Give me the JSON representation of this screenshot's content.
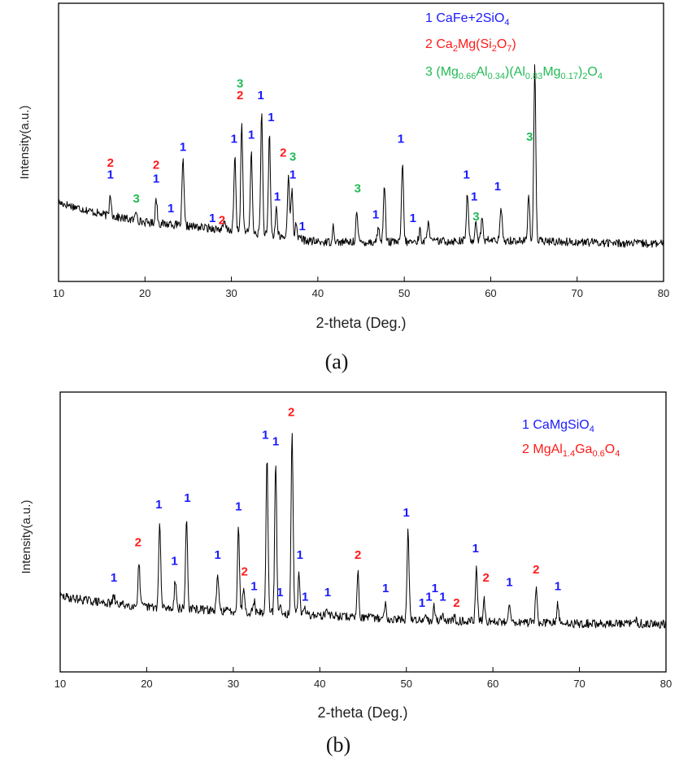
{
  "chart_data": [
    {
      "id": "a",
      "type": "line",
      "panel_label": "(a)",
      "xlabel": "2-theta (Deg.)",
      "ylabel": "Intensity(a.u.)",
      "xlim": [
        10,
        80
      ],
      "xticks": [
        10,
        20,
        30,
        40,
        50,
        60,
        70,
        80
      ],
      "y_units": "relative intensity (0 baseline to 100 max)",
      "legend": [
        {
          "num": "1",
          "name": "CaFe+2SiO",
          "sub": "4",
          "color": "#1a1aff"
        },
        {
          "num": "2",
          "name": "Ca",
          "sub": "2",
          "rest": "Mg(Si",
          "sub2": "2",
          "rest2": "O",
          "sub3": "7",
          "tail": ")",
          "color": "#ff1a1a"
        },
        {
          "num": "3",
          "name": "(Mg",
          "sub": "0.66",
          "rest": "Al",
          "sub2": "0.34",
          "rest2": ")(Al",
          "sub3": "0.83",
          "rest3": "Mg",
          "sub4": "0.17",
          "tail": ")",
          "sub5": "2",
          "tail2": "O",
          "sub6": "4",
          "color": "#22bb55"
        }
      ],
      "background": [
        [
          10,
          30
        ],
        [
          15,
          24
        ],
        [
          20,
          20
        ],
        [
          25,
          18
        ],
        [
          30,
          16
        ],
        [
          35,
          13
        ],
        [
          40,
          10
        ],
        [
          50,
          10
        ],
        [
          60,
          11
        ],
        [
          70,
          10
        ],
        [
          80,
          9
        ]
      ],
      "peaks": [
        {
          "x": 16.0,
          "y": 34
        },
        {
          "x": 19.0,
          "y": 26
        },
        {
          "x": 21.3,
          "y": 32
        },
        {
          "x": 23.0,
          "y": 20
        },
        {
          "x": 24.4,
          "y": 51
        },
        {
          "x": 27.9,
          "y": 17
        },
        {
          "x": 29.2,
          "y": 20
        },
        {
          "x": 30.4,
          "y": 53
        },
        {
          "x": 31.2,
          "y": 70
        },
        {
          "x": 32.3,
          "y": 55
        },
        {
          "x": 33.5,
          "y": 75
        },
        {
          "x": 34.4,
          "y": 64
        },
        {
          "x": 35.2,
          "y": 27
        },
        {
          "x": 36.6,
          "y": 45
        },
        {
          "x": 37.0,
          "y": 36
        },
        {
          "x": 37.5,
          "y": 20
        },
        {
          "x": 38.1,
          "y": 12
        },
        {
          "x": 41.8,
          "y": 18
        },
        {
          "x": 44.5,
          "y": 25
        },
        {
          "x": 47.0,
          "y": 18
        },
        {
          "x": 47.7,
          "y": 40
        },
        {
          "x": 49.8,
          "y": 50
        },
        {
          "x": 51.8,
          "y": 16
        },
        {
          "x": 52.8,
          "y": 22
        },
        {
          "x": 57.3,
          "y": 35
        },
        {
          "x": 58.3,
          "y": 21
        },
        {
          "x": 59.0,
          "y": 22
        },
        {
          "x": 61.2,
          "y": 27
        },
        {
          "x": 64.4,
          "y": 33
        },
        {
          "x": 65.1,
          "y": 100
        }
      ],
      "peak_labels": [
        {
          "x": 16.0,
          "y": 42,
          "text": "1",
          "phase": 1
        },
        {
          "x": 16.0,
          "y": 48,
          "text": "2",
          "phase": 2
        },
        {
          "x": 19.0,
          "y": 30,
          "text": "3",
          "phase": 3
        },
        {
          "x": 21.3,
          "y": 40,
          "text": "1",
          "phase": 1
        },
        {
          "x": 21.3,
          "y": 47,
          "text": "2",
          "phase": 2
        },
        {
          "x": 23.0,
          "y": 25,
          "text": "1",
          "phase": 1
        },
        {
          "x": 24.4,
          "y": 56,
          "text": "1",
          "phase": 1
        },
        {
          "x": 27.8,
          "y": 20,
          "text": "1",
          "phase": 1
        },
        {
          "x": 28.9,
          "y": 19,
          "text": "2",
          "phase": 2
        },
        {
          "x": 30.3,
          "y": 60,
          "text": "1",
          "phase": 1
        },
        {
          "x": 31.0,
          "y": 82,
          "text": "2",
          "phase": 2
        },
        {
          "x": 31.0,
          "y": 88,
          "text": "3",
          "phase": 3
        },
        {
          "x": 32.3,
          "y": 62,
          "text": "1",
          "phase": 1
        },
        {
          "x": 33.4,
          "y": 82,
          "text": "1",
          "phase": 1
        },
        {
          "x": 34.6,
          "y": 71,
          "text": "1",
          "phase": 1
        },
        {
          "x": 36.0,
          "y": 53,
          "text": "2",
          "phase": 2
        },
        {
          "x": 37.1,
          "y": 51,
          "text": "3",
          "phase": 3
        },
        {
          "x": 37.1,
          "y": 42,
          "text": "1",
          "phase": 1
        },
        {
          "x": 35.3,
          "y": 31,
          "text": "1",
          "phase": 1
        },
        {
          "x": 38.2,
          "y": 16,
          "text": "1",
          "phase": 1
        },
        {
          "x": 44.6,
          "y": 35,
          "text": "3",
          "phase": 3
        },
        {
          "x": 46.7,
          "y": 22,
          "text": "1",
          "phase": 1
        },
        {
          "x": 49.6,
          "y": 60,
          "text": "1",
          "phase": 1
        },
        {
          "x": 51.0,
          "y": 20,
          "text": "1",
          "phase": 1
        },
        {
          "x": 57.2,
          "y": 42,
          "text": "1",
          "phase": 1
        },
        {
          "x": 58.1,
          "y": 31,
          "text": "1",
          "phase": 1
        },
        {
          "x": 58.3,
          "y": 21,
          "text": "3",
          "phase": 3
        },
        {
          "x": 60.8,
          "y": 36,
          "text": "1",
          "phase": 1
        },
        {
          "x": 64.5,
          "y": 61,
          "text": "3",
          "phase": 3
        }
      ]
    },
    {
      "id": "b",
      "type": "line",
      "panel_label": "(b)",
      "xlabel": "2-theta (Deg.)",
      "ylabel": "Intensity(a.u.)",
      "xlim": [
        10,
        80
      ],
      "xticks": [
        10,
        20,
        30,
        40,
        50,
        60,
        70,
        80
      ],
      "y_units": "relative intensity (0 baseline to 100 max)",
      "legend": [
        {
          "num": "1",
          "name": "CaMgSiO",
          "sub": "4",
          "color": "#1a1aff"
        },
        {
          "num": "2",
          "name": "MgAl",
          "sub": "1.4",
          "rest": "Ga",
          "sub2": "0.6",
          "rest2": "O",
          "sub3": "4",
          "color": "#ff1a1a"
        }
      ],
      "background": [
        [
          10,
          22
        ],
        [
          15,
          19
        ],
        [
          20,
          17
        ],
        [
          30,
          15
        ],
        [
          40,
          13
        ],
        [
          50,
          11
        ],
        [
          60,
          10
        ],
        [
          70,
          9
        ],
        [
          80,
          9
        ]
      ],
      "peaks": [
        {
          "x": 16.2,
          "y": 22
        },
        {
          "x": 19.1,
          "y": 38
        },
        {
          "x": 21.5,
          "y": 57
        },
        {
          "x": 23.3,
          "y": 30
        },
        {
          "x": 24.6,
          "y": 60
        },
        {
          "x": 28.2,
          "y": 32
        },
        {
          "x": 30.6,
          "y": 56
        },
        {
          "x": 31.2,
          "y": 27
        },
        {
          "x": 32.4,
          "y": 20
        },
        {
          "x": 33.9,
          "y": 89
        },
        {
          "x": 34.9,
          "y": 86
        },
        {
          "x": 35.5,
          "y": 18
        },
        {
          "x": 36.8,
          "y": 100
        },
        {
          "x": 37.6,
          "y": 33
        },
        {
          "x": 38.3,
          "y": 16
        },
        {
          "x": 40.9,
          "y": 16
        },
        {
          "x": 42.4,
          "y": 12
        },
        {
          "x": 44.4,
          "y": 34
        },
        {
          "x": 47.6,
          "y": 18
        },
        {
          "x": 50.2,
          "y": 53
        },
        {
          "x": 52.3,
          "y": 14
        },
        {
          "x": 53.2,
          "y": 17
        },
        {
          "x": 54.2,
          "y": 14
        },
        {
          "x": 55.6,
          "y": 12
        },
        {
          "x": 58.1,
          "y": 36
        },
        {
          "x": 59.0,
          "y": 20
        },
        {
          "x": 61.9,
          "y": 20
        },
        {
          "x": 65.0,
          "y": 25
        },
        {
          "x": 67.5,
          "y": 18
        },
        {
          "x": 76.5,
          "y": 11
        }
      ],
      "peak_labels": [
        {
          "x": 16.2,
          "y": 29,
          "text": "1",
          "phase": 1
        },
        {
          "x": 19.0,
          "y": 46,
          "text": "2",
          "phase": 2
        },
        {
          "x": 21.4,
          "y": 64,
          "text": "1",
          "phase": 1
        },
        {
          "x": 23.2,
          "y": 37,
          "text": "1",
          "phase": 1
        },
        {
          "x": 24.7,
          "y": 67,
          "text": "1",
          "phase": 1
        },
        {
          "x": 28.2,
          "y": 40,
          "text": "1",
          "phase": 1
        },
        {
          "x": 30.6,
          "y": 63,
          "text": "1",
          "phase": 1
        },
        {
          "x": 31.3,
          "y": 32,
          "text": "2",
          "phase": 2
        },
        {
          "x": 32.4,
          "y": 25,
          "text": "1",
          "phase": 1
        },
        {
          "x": 33.7,
          "y": 97,
          "text": "1",
          "phase": 1
        },
        {
          "x": 34.9,
          "y": 94,
          "text": "1",
          "phase": 1
        },
        {
          "x": 35.4,
          "y": 22,
          "text": "1",
          "phase": 1
        },
        {
          "x": 36.7,
          "y": 108,
          "text": "2",
          "phase": 2
        },
        {
          "x": 37.7,
          "y": 40,
          "text": "1",
          "phase": 1
        },
        {
          "x": 38.3,
          "y": 20,
          "text": "1",
          "phase": 1
        },
        {
          "x": 40.9,
          "y": 22,
          "text": "1",
          "phase": 1
        },
        {
          "x": 44.4,
          "y": 40,
          "text": "2",
          "phase": 2
        },
        {
          "x": 47.6,
          "y": 24,
          "text": "1",
          "phase": 1
        },
        {
          "x": 50.0,
          "y": 60,
          "text": "1",
          "phase": 1
        },
        {
          "x": 51.8,
          "y": 17,
          "text": "1",
          "phase": 1
        },
        {
          "x": 52.6,
          "y": 20,
          "text": "1",
          "phase": 1
        },
        {
          "x": 53.3,
          "y": 24,
          "text": "1",
          "phase": 1
        },
        {
          "x": 54.2,
          "y": 20,
          "text": "1",
          "phase": 1
        },
        {
          "x": 55.8,
          "y": 17,
          "text": "2",
          "phase": 2
        },
        {
          "x": 58.0,
          "y": 43,
          "text": "1",
          "phase": 1
        },
        {
          "x": 59.2,
          "y": 29,
          "text": "2",
          "phase": 2
        },
        {
          "x": 61.9,
          "y": 27,
          "text": "1",
          "phase": 1
        },
        {
          "x": 65.0,
          "y": 33,
          "text": "2",
          "phase": 2
        },
        {
          "x": 67.5,
          "y": 25,
          "text": "1",
          "phase": 1
        }
      ]
    }
  ]
}
